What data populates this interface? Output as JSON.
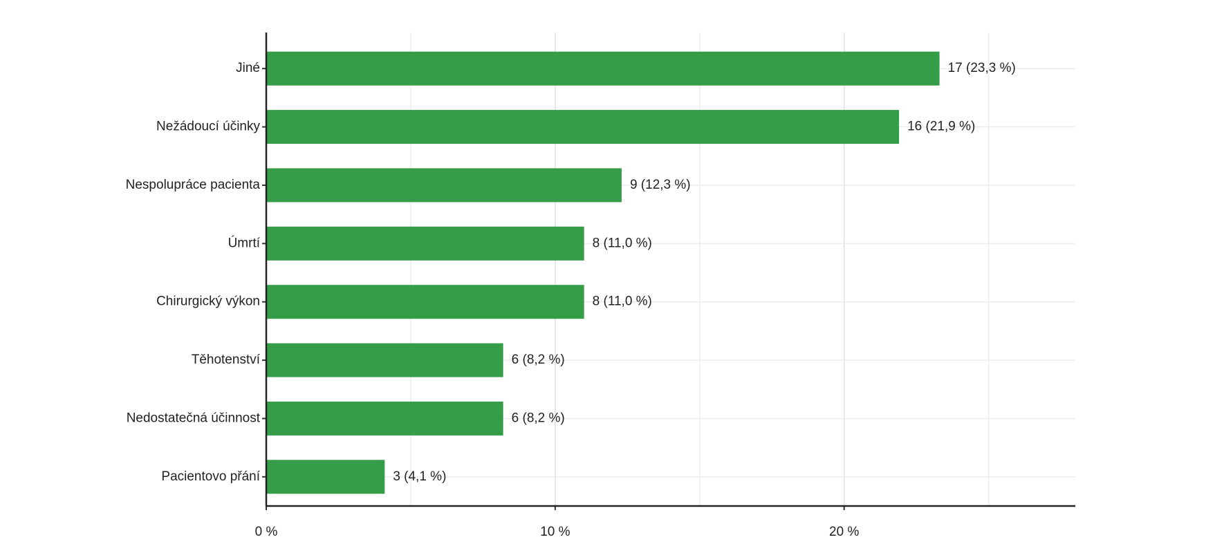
{
  "chart_data": {
    "type": "barh",
    "categories": [
      "Jiné",
      "Nežádoucí účinky",
      "Nespolupráce pacienta",
      "Úmrtí",
      "Chirurgický výkon",
      "Těhotenství",
      "Nedostatečná účinnost",
      "Pacientovo přání"
    ],
    "values": [
      23.3,
      21.9,
      12.3,
      11.0,
      11.0,
      8.2,
      8.2,
      4.1
    ],
    "value_labels": [
      "17 (23,3 %)",
      "16 (21,9 %)",
      "9 (12,3 %)",
      "8 (11,0 %)",
      "8 (11,0 %)",
      "6 (8,2 %)",
      "6 (8,2 %)",
      "3 (4,1 %)"
    ],
    "color": "#359c48",
    "xlim": [
      0,
      28
    ],
    "xticks": [
      {
        "value": 0,
        "label": "0 %"
      },
      {
        "value": 10,
        "label": "10 %"
      },
      {
        "value": 20,
        "label": "20 %"
      }
    ],
    "minor_xticks": [
      5,
      15,
      25
    ],
    "grid": true
  }
}
